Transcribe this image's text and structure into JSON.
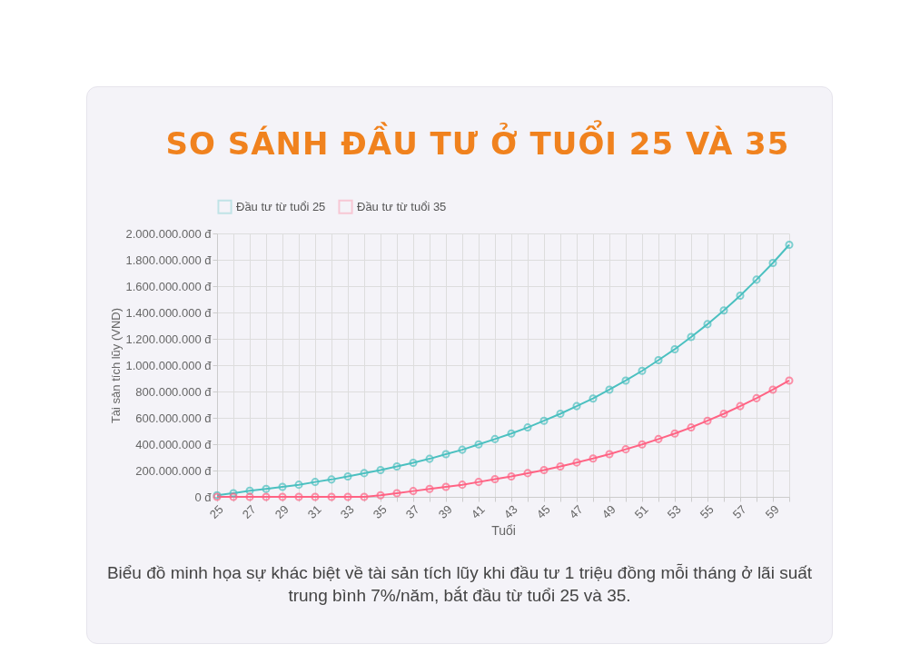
{
  "chart_data": {
    "type": "line",
    "title": "SO SÁNH ĐẦU TƯ Ở TUỔI 25 VÀ 35",
    "xlabel": "Tuổi",
    "ylabel": "Tài sản tích lũy (VND)",
    "categories": [
      "25",
      null,
      "27",
      null,
      "29",
      null,
      "31",
      null,
      "33",
      null,
      "35",
      null,
      "37",
      null,
      "39",
      null,
      "41",
      null,
      "43",
      null,
      "45",
      null,
      "47",
      null,
      "49",
      null,
      "51",
      null,
      "53",
      null,
      "55",
      null,
      "57",
      null,
      "59",
      null
    ],
    "series": [
      {
        "name": "Đầu tư từ tuổi 25",
        "color": "#4bc0c0",
        "values": [
          12000000,
          28000000,
          46000000,
          60000000,
          76000000,
          92000000,
          113000000,
          132000000,
          155000000,
          180000000,
          203000000,
          231000000,
          259000000,
          289000000,
          324000000,
          358000000,
          398000000,
          439000000,
          481000000,
          527000000,
          578000000,
          631000000,
          689000000,
          747000000,
          814000000,
          883000000,
          957000000,
          1038000000,
          1121000000,
          1214000000,
          1311000000,
          1415000000,
          1528000000,
          1649000000,
          1776000000,
          1914000000
        ]
      },
      {
        "name": "Đầu tư từ tuổi 35",
        "color": "#ff6384",
        "values": [
          0,
          0,
          0,
          0,
          0,
          0,
          0,
          0,
          0,
          0,
          12000000,
          28000000,
          44000000,
          60000000,
          76000000,
          92000000,
          113000000,
          134000000,
          155000000,
          180000000,
          203000000,
          231000000,
          261000000,
          291000000,
          324000000,
          361000000,
          398000000,
          439000000,
          481000000,
          527000000,
          578000000,
          631000000,
          689000000,
          749000000,
          814000000,
          883000000
        ]
      }
    ],
    "ylim": [
      0,
      2000000000
    ],
    "yticks": [
      {
        "value": 0,
        "label": "0 đ"
      },
      {
        "value": 200000000,
        "label": "200.000.000 đ"
      },
      {
        "value": 400000000,
        "label": "400.000.000 đ"
      },
      {
        "value": 600000000,
        "label": "600.000.000 đ"
      },
      {
        "value": 800000000,
        "label": "800.000.000 đ"
      },
      {
        "value": 1000000000,
        "label": "1.000.000.000 đ"
      },
      {
        "value": 1200000000,
        "label": "1.200.000.000 đ"
      },
      {
        "value": 1400000000,
        "label": "1.400.000.000 đ"
      },
      {
        "value": 1600000000,
        "label": "1.600.000.000 đ"
      },
      {
        "value": 1800000000,
        "label": "1.800.000.000 đ"
      },
      {
        "value": 2000000000,
        "label": "2.000.000.000 đ"
      }
    ],
    "grid": true,
    "legend": "top",
    "marker": "circle",
    "line_style": "solid",
    "annotations": [
      "Biểu đồ minh họa sự khác biệt về tài sản tích lũy khi đầu tư 1 triệu đồng mỗi tháng ở lãi suất trung bình 7%/năm, bắt đầu từ tuổi 25 và 35."
    ]
  }
}
